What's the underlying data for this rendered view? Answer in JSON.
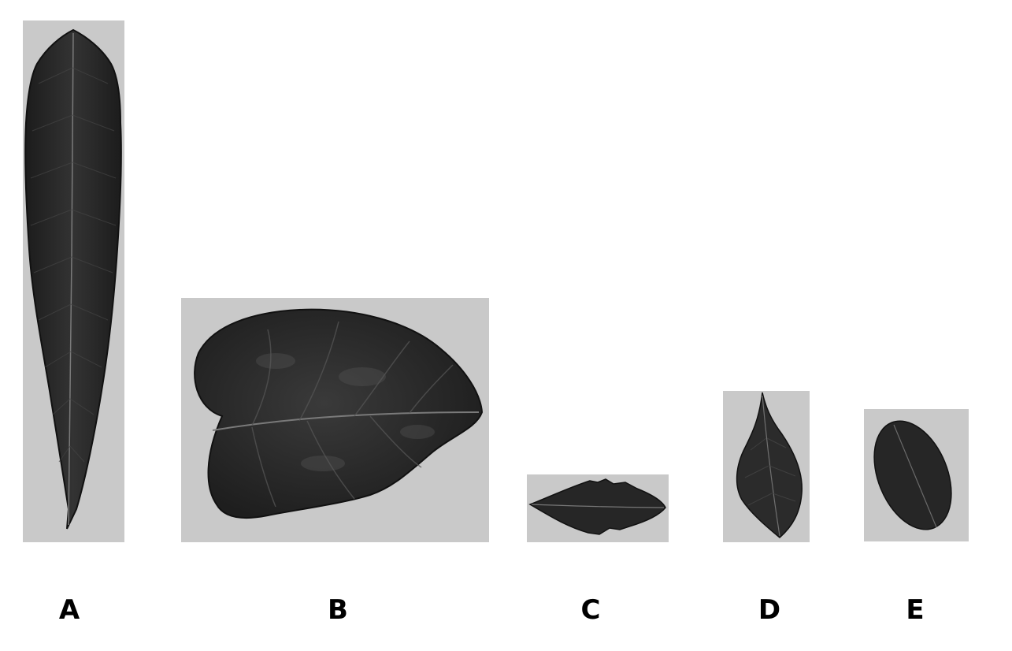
{
  "figure": {
    "leaves": [
      {
        "label": "A",
        "shape": "long lanceolate leaf with undulate margin"
      },
      {
        "label": "B",
        "shape": "broad cordate leaf with wavy surface"
      },
      {
        "label": "C",
        "shape": "small elliptic leaf with serrate margin"
      },
      {
        "label": "D",
        "shape": "ovate leaf with acuminate tip"
      },
      {
        "label": "E",
        "shape": "oval elliptic leaf"
      }
    ]
  },
  "colors": {
    "background": "#ffffff",
    "panel": "#c9c9c9",
    "leaf": "#2a2a2a",
    "vein": "#6a6a6a",
    "label": "#000000"
  }
}
